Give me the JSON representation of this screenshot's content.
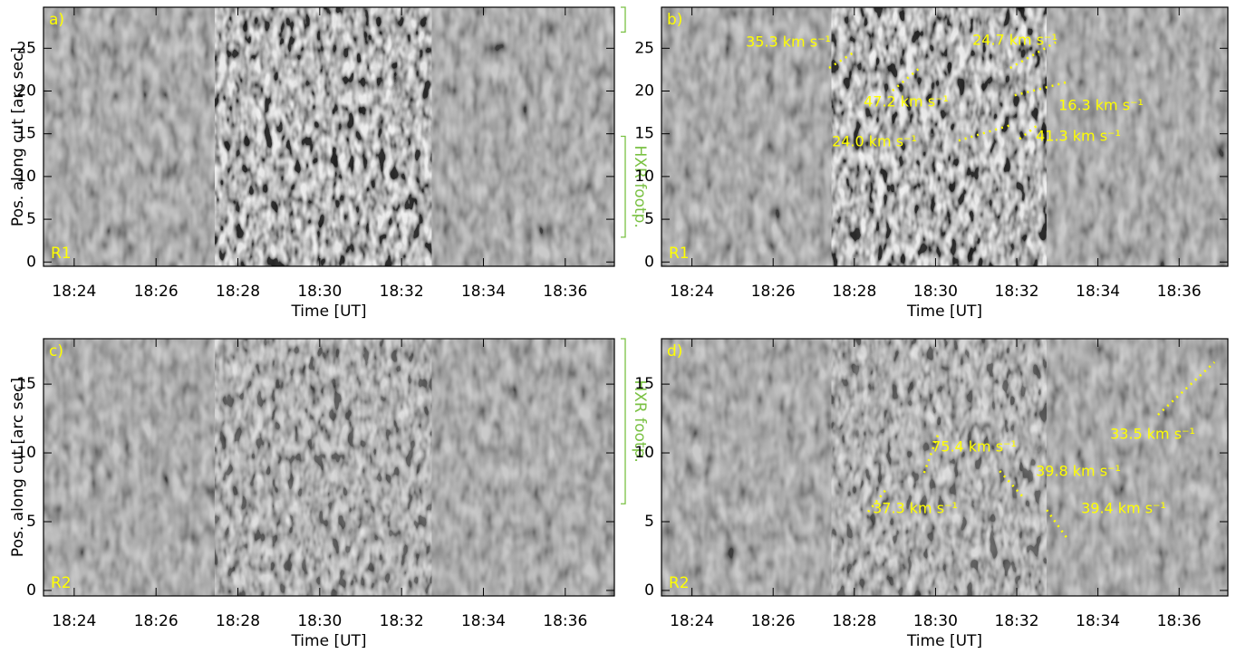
{
  "chart_data": [
    {
      "type": "image",
      "panel_label": "a)",
      "region_label": "R1",
      "xlabel": "Time [UT]",
      "ylabel": "Pos. along cut [arc sec]",
      "xlim": [
        23.25,
        37.2
      ],
      "xticks": [
        {
          "value": 24,
          "label": "18:24"
        },
        {
          "value": 26,
          "label": "18:26"
        },
        {
          "value": 28,
          "label": "18:28"
        },
        {
          "value": 30,
          "label": "18:30"
        },
        {
          "value": 32,
          "label": "18:32"
        },
        {
          "value": 34,
          "label": "18:34"
        },
        {
          "value": 36,
          "label": "18:36"
        }
      ],
      "ylim": [
        -0.5,
        29.8
      ],
      "yticks": [
        0,
        5,
        10,
        15,
        20,
        25
      ],
      "hxr_label": "HXR footp.",
      "hxr_color": "#7ac143",
      "hxr_ranges": [
        [
          2.9,
          14.7
        ],
        [
          26.9,
          29.8
        ]
      ],
      "label_color": "#ffff00"
    },
    {
      "type": "image",
      "panel_label": "b)",
      "region_label": "R1",
      "xlabel": "Time [UT]",
      "xlim": [
        23.25,
        37.2
      ],
      "xticks": [
        {
          "value": 24,
          "label": "18:24"
        },
        {
          "value": 26,
          "label": "18:26"
        },
        {
          "value": 28,
          "label": "18:28"
        },
        {
          "value": 30,
          "label": "18:30"
        },
        {
          "value": 32,
          "label": "18:32"
        },
        {
          "value": 34,
          "label": "18:34"
        },
        {
          "value": 36,
          "label": "18:36"
        }
      ],
      "ylim": [
        -0.5,
        29.8
      ],
      "yticks": [
        0,
        5,
        10,
        15,
        20,
        25
      ],
      "label_color": "#ffff00",
      "tracks": [
        {
          "label": "35.3 km s⁻¹",
          "x": [
            27.38,
            27.98
          ],
          "y": [
            22.7,
            24.5
          ]
        },
        {
          "label": "24.7 km s⁻¹",
          "x": [
            31.84,
            32.96
          ],
          "y": [
            22.7,
            25.7
          ]
        },
        {
          "label": "47.2 km s⁻¹",
          "x": [
            28.94,
            29.61
          ],
          "y": [
            20.05,
            22.7
          ]
        },
        {
          "label": "16.3 km s⁻¹",
          "x": [
            31.95,
            33.29
          ],
          "y": [
            19.5,
            21.1
          ]
        },
        {
          "label": "24.0 km s⁻¹",
          "x": [
            30.57,
            31.84
          ],
          "y": [
            14.2,
            16.0
          ]
        },
        {
          "label": "41.3 km s⁻¹",
          "x": [
            32.07,
            32.51
          ],
          "y": [
            14.4,
            16.0
          ]
        }
      ]
    },
    {
      "type": "image",
      "panel_label": "c)",
      "region_label": "R2",
      "xlabel": "Time [UT]",
      "ylabel": "Pos. along cut [arc sec]",
      "xlim": [
        23.25,
        37.2
      ],
      "xticks": [
        {
          "value": 24,
          "label": "18:24"
        },
        {
          "value": 26,
          "label": "18:26"
        },
        {
          "value": 28,
          "label": "18:28"
        },
        {
          "value": 30,
          "label": "18:30"
        },
        {
          "value": 32,
          "label": "18:32"
        },
        {
          "value": 34,
          "label": "18:34"
        },
        {
          "value": 36,
          "label": "18:36"
        }
      ],
      "ylim": [
        -0.4,
        18.3
      ],
      "yticks": [
        0,
        5,
        10,
        15
      ],
      "hxr_label": "HXR footp.",
      "hxr_color": "#7ac143",
      "hxr_ranges": [
        [
          6.3,
          18.3
        ]
      ],
      "label_color": "#ffff00"
    },
    {
      "type": "image",
      "panel_label": "d)",
      "region_label": "R2",
      "xlabel": "Time [UT]",
      "xlim": [
        23.25,
        37.2
      ],
      "xticks": [
        {
          "value": 24,
          "label": "18:24"
        },
        {
          "value": 26,
          "label": "18:26"
        },
        {
          "value": 28,
          "label": "18:28"
        },
        {
          "value": 30,
          "label": "18:30"
        },
        {
          "value": 32,
          "label": "18:32"
        },
        {
          "value": 34,
          "label": "18:34"
        },
        {
          "value": 36,
          "label": "18:36"
        }
      ],
      "ylim": [
        -0.4,
        18.3
      ],
      "yticks": [
        0,
        5,
        10,
        15
      ],
      "label_color": "#ffff00",
      "tracks": [
        {
          "label": "75.4 km s⁻¹",
          "x": [
            29.72,
            30.06
          ],
          "y": [
            8.55,
            11.32
          ]
        },
        {
          "label": "39.8 km s⁻¹",
          "x": [
            31.58,
            32.18
          ],
          "y": [
            8.68,
            6.71
          ]
        },
        {
          "label": "33.5 km s⁻¹",
          "x": [
            35.48,
            36.87
          ],
          "y": [
            12.77,
            16.59
          ]
        },
        {
          "label": "39.4 km s⁻¹",
          "x": [
            32.74,
            33.25
          ],
          "y": [
            5.85,
            3.75
          ]
        },
        {
          "label": "37.3 km s⁻¹",
          "x": [
            28.34,
            28.79
          ],
          "y": [
            5.72,
            7.37
          ]
        }
      ]
    }
  ]
}
